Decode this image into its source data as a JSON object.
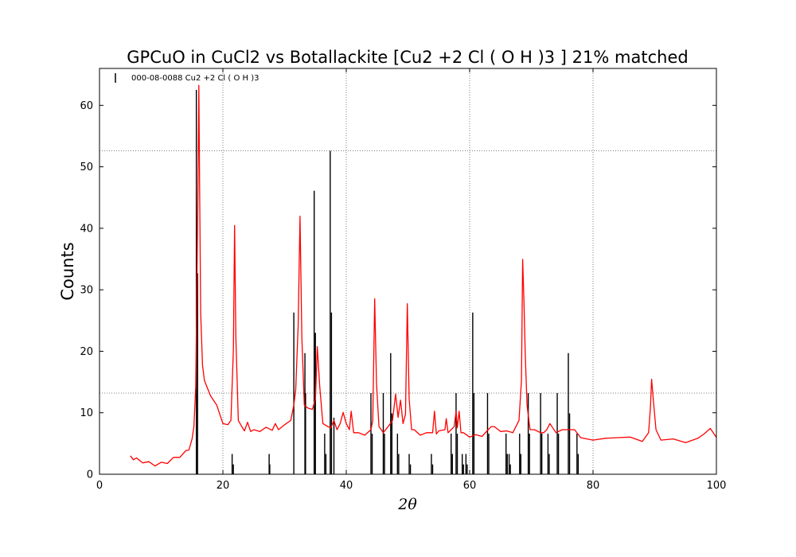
{
  "chart_data": {
    "type": "line",
    "title": "GPCuO in CuCl2 vs Botallackite [Cu2 +2 Cl ( O H )3 ] 21% matched",
    "xlabel": "2θ",
    "ylabel": "Counts",
    "xlim": [
      0,
      100
    ],
    "ylim": [
      0,
      66
    ],
    "xticks": [
      0,
      20,
      40,
      60,
      80,
      100
    ],
    "yticks": [
      0,
      10,
      20,
      30,
      40,
      50,
      60
    ],
    "grid": true,
    "legend_position": "top-left",
    "legend": {
      "label": "000-08-0088 Cu2 +2 Cl ( O H )3"
    },
    "colors": {
      "measured": "#ff0000",
      "reference": "#000000"
    },
    "measured_pattern": {
      "x": [
        5.0,
        5.5,
        6.0,
        7.0,
        8.0,
        9.0,
        10.0,
        11.0,
        12.0,
        13.0,
        14.0,
        14.5,
        15.0,
        15.3,
        15.6,
        15.9,
        16.1,
        16.25,
        16.4,
        16.7,
        17.0,
        18.0,
        19.0,
        20.0,
        20.8,
        21.3,
        21.7,
        21.9,
        22.1,
        22.5,
        23.0,
        23.5,
        24.0,
        24.5,
        25.0,
        26.0,
        27.0,
        28.0,
        28.5,
        29.0,
        30.0,
        31.0,
        31.5,
        31.8,
        32.2,
        32.5,
        32.8,
        33.2,
        33.8,
        34.5,
        35.0,
        35.3,
        35.7,
        36.2,
        37.0,
        37.5,
        38.0,
        38.5,
        39.0,
        39.5,
        40.0,
        40.5,
        40.8,
        41.2,
        42.0,
        43.0,
        44.0,
        44.3,
        44.6,
        44.9,
        45.3,
        46.0,
        47.0,
        47.5,
        48.0,
        48.4,
        48.8,
        49.2,
        49.6,
        49.9,
        50.2,
        50.6,
        51.0,
        52.0,
        53.0,
        54.0,
        54.3,
        54.6,
        55.0,
        56.0,
        56.2,
        56.5,
        57.0,
        57.5,
        57.8,
        58.0,
        58.3,
        58.6,
        59.0,
        60.0,
        61.0,
        62.0,
        63.0,
        63.5,
        64.0,
        65.0,
        66.0,
        67.0,
        67.5,
        68.0,
        68.4,
        68.6,
        68.8,
        69.0,
        69.3,
        69.8,
        70.5,
        71.5,
        72.0,
        72.5,
        73.0,
        74.0,
        75.0,
        76.0,
        77.0,
        78.0,
        79.0,
        80.0,
        82.0,
        84.0,
        86.0,
        88.0,
        89.0,
        89.3,
        89.5,
        89.8,
        90.2,
        91.0,
        93.0,
        95.0,
        97.0,
        98.0,
        99.0,
        100.0
      ],
      "y": [
        3.0,
        2.6,
        2.4,
        2.1,
        1.8,
        1.6,
        1.7,
        2.0,
        2.5,
        3.0,
        3.6,
        4.2,
        5.5,
        8.0,
        14.0,
        40.0,
        63.0,
        45.0,
        26.0,
        18.0,
        15.0,
        13.0,
        11.0,
        8.5,
        7.8,
        9.0,
        20.0,
        40.7,
        22.0,
        9.0,
        7.6,
        7.3,
        8.2,
        7.2,
        7.0,
        7.2,
        7.4,
        7.4,
        8.0,
        7.5,
        7.8,
        9.0,
        11.0,
        14.0,
        24.0,
        42.2,
        22.0,
        11.5,
        10.5,
        10.8,
        12.0,
        21.0,
        14.0,
        8.5,
        7.5,
        7.8,
        8.5,
        7.5,
        8.0,
        10.3,
        8.0,
        7.5,
        10.0,
        7.0,
        6.5,
        6.6,
        7.0,
        9.0,
        28.3,
        15.0,
        7.5,
        7.0,
        7.8,
        9.0,
        12.8,
        9.5,
        11.8,
        8.5,
        9.5,
        28.0,
        12.0,
        7.5,
        7.0,
        6.6,
        6.5,
        7.0,
        10.0,
        6.8,
        6.8,
        7.5,
        8.8,
        7.0,
        7.0,
        8.0,
        10.0,
        7.8,
        10.0,
        7.0,
        6.5,
        6.3,
        6.2,
        6.4,
        7.0,
        8.0,
        7.5,
        7.2,
        6.8,
        7.0,
        7.5,
        9.0,
        15.0,
        35.2,
        28.0,
        20.0,
        11.0,
        7.5,
        7.0,
        7.0,
        6.5,
        7.5,
        8.0,
        7.0,
        7.0,
        7.5,
        7.0,
        6.2,
        5.5,
        5.8,
        5.6,
        6.2,
        5.8,
        5.6,
        6.5,
        11.0,
        15.2,
        12.0,
        7.0,
        5.8,
        5.5,
        5.4,
        5.6,
        6.8,
        7.2,
        6.0
      ]
    },
    "reference_lines": {
      "name": "000-08-0088 Cu2 +2 Cl ( O H )3",
      "x": [
        15.7,
        15.9,
        21.5,
        21.7,
        27.5,
        27.6,
        31.5,
        33.3,
        33.4,
        34.8,
        35.0,
        36.5,
        36.7,
        37.4,
        37.6,
        38.0,
        44.0,
        44.2,
        46.0,
        46.2,
        47.2,
        47.4,
        48.3,
        48.5,
        50.2,
        50.4,
        53.8,
        54.0,
        57.0,
        57.2,
        57.8,
        58.0,
        58.8,
        59.0,
        59.4,
        59.6,
        60.5,
        60.7,
        62.9,
        63.1,
        65.9,
        66.1,
        66.4,
        66.6,
        68.1,
        68.3,
        69.5,
        69.7,
        71.5,
        71.7,
        72.7,
        72.9,
        74.2,
        74.4,
        76.0,
        76.2,
        77.4,
        77.6
      ],
      "y": [
        62.5,
        32.7,
        3.3,
        1.6,
        3.3,
        1.6,
        26.3,
        19.7,
        13.2,
        46.1,
        23.0,
        6.6,
        3.3,
        52.6,
        26.3,
        9.2,
        13.2,
        6.6,
        13.2,
        6.6,
        19.7,
        9.9,
        6.6,
        3.3,
        3.3,
        1.6,
        3.3,
        1.6,
        6.6,
        3.3,
        13.2,
        6.6,
        3.3,
        1.6,
        3.3,
        1.6,
        26.3,
        13.2,
        13.2,
        6.6,
        6.6,
        3.3,
        3.3,
        1.6,
        6.6,
        3.3,
        13.2,
        6.6,
        13.2,
        6.6,
        6.6,
        3.3,
        13.2,
        6.6,
        19.7,
        9.9,
        6.6,
        3.3
      ]
    },
    "reference_gridlines_y": [
      52.6,
      13.2
    ]
  }
}
